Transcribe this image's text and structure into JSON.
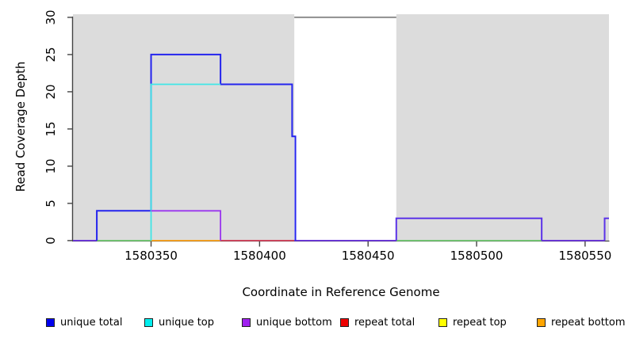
{
  "figure": {
    "x_title": "Coordinate in Reference Genome",
    "y_title": "Read Coverage Depth"
  },
  "chart_data": {
    "type": "line",
    "subtype": "step-coverage",
    "title": "",
    "xlabel": "Coordinate in Reference Genome",
    "ylabel": "Read Coverage Depth",
    "xlim": [
      1580314,
      1580561
    ],
    "ylim": [
      0,
      30
    ],
    "xticks": [
      1580350,
      1580400,
      1580450,
      1580500,
      1580550
    ],
    "yticks": [
      0,
      5,
      10,
      15,
      20,
      25,
      30
    ],
    "grid": false,
    "legend_position": "bottom",
    "shading_color": "#dcdcdc",
    "shaded_regions": [
      [
        1580314,
        1580416
      ],
      [
        1580463,
        1580561
      ]
    ],
    "unshaded_gap": [
      1580416,
      1580463
    ],
    "clipped_line": {
      "x1": 1580416,
      "x2": 1580463,
      "y": 30,
      "color": "#8e8e8e",
      "w": 2
    },
    "series": [
      {
        "name": "unique total",
        "color": "#2424ee",
        "w": 2,
        "steps": [
          [
            1580314,
            0
          ],
          [
            1580325,
            4
          ],
          [
            1580350,
            25
          ],
          [
            1580382,
            21
          ],
          [
            1580415,
            14
          ],
          [
            1580416,
            0
          ],
          [
            1580463,
            3
          ],
          [
            1580530,
            0
          ],
          [
            1580559,
            3
          ],
          [
            1580561,
            3
          ]
        ]
      },
      {
        "name": "unique top",
        "color": "#40e6e6",
        "w": 1.8,
        "steps": [
          [
            1580314,
            0
          ],
          [
            1580350,
            21
          ],
          [
            1580382,
            0
          ]
        ]
      },
      {
        "name": "unique bottom",
        "color": "#9a35ee",
        "w": 1.8,
        "steps": [
          [
            1580314,
            0
          ],
          [
            1580350,
            4
          ],
          [
            1580382,
            0
          ],
          [
            1580463,
            3
          ],
          [
            1580530,
            0
          ],
          [
            1580559,
            3
          ],
          [
            1580561,
            3
          ]
        ]
      },
      {
        "name": "repeat total",
        "color": "#d6455e",
        "w": 1.8,
        "steps": [
          [
            1580382,
            0
          ],
          [
            1580416,
            0
          ]
        ]
      },
      {
        "name": "repeat top",
        "color": "#ffff00",
        "w": 1.8,
        "steps": []
      },
      {
        "name": "repeat bottom",
        "color": "#ffa51e",
        "w": 1.8,
        "steps": [
          [
            1580350,
            0
          ],
          [
            1580382,
            0
          ]
        ]
      }
    ],
    "visible_polylines": [
      {
        "series": "zero-line",
        "color": "#6b35e0",
        "w": 1.8,
        "points": [
          [
            1580314,
            0
          ],
          [
            1580325,
            0
          ]
        ]
      },
      {
        "series": "zero-line",
        "color": "#74cb74",
        "w": 1.8,
        "points": [
          [
            1580325,
            0
          ],
          [
            1580350,
            0
          ]
        ]
      },
      {
        "series": "repeat bottom",
        "color": "#ffa51e",
        "w": 1.8,
        "points": [
          [
            1580350,
            0
          ],
          [
            1580382,
            0
          ]
        ]
      },
      {
        "series": "repeat total",
        "color": "#d6455e",
        "w": 1.8,
        "points": [
          [
            1580382,
            0
          ],
          [
            1580416,
            0
          ]
        ]
      },
      {
        "series": "zero-line",
        "color": "#6b35e0",
        "w": 1.8,
        "points": [
          [
            1580416,
            0
          ],
          [
            1580463,
            0
          ]
        ]
      },
      {
        "series": "zero-line",
        "color": "#74cb74",
        "w": 1.8,
        "points": [
          [
            1580463,
            0
          ],
          [
            1580530,
            0
          ]
        ]
      },
      {
        "series": "zero-line",
        "color": "#6b35e0",
        "w": 1.8,
        "points": [
          [
            1580530,
            0
          ],
          [
            1580559,
            0
          ]
        ]
      },
      {
        "series": "unique total",
        "color": "#2424ee",
        "w": 2,
        "points": [
          [
            1580325,
            0
          ],
          [
            1580325,
            4
          ],
          [
            1580350,
            4
          ],
          [
            1580350,
            25
          ],
          [
            1580382,
            25
          ],
          [
            1580382,
            21
          ],
          [
            1580415,
            21
          ],
          [
            1580415,
            14
          ],
          [
            1580416.5,
            14
          ],
          [
            1580416.5,
            0
          ]
        ]
      },
      {
        "series": "unique top",
        "color": "#40e6e6",
        "w": 1.8,
        "points": [
          [
            1580350,
            0
          ],
          [
            1580350,
            21
          ],
          [
            1580382,
            21
          ]
        ]
      },
      {
        "series": "unique bottom",
        "color": "#9a35ee",
        "w": 1.8,
        "points": [
          [
            1580350,
            4
          ],
          [
            1580382,
            4
          ],
          [
            1580382,
            0
          ]
        ]
      },
      {
        "series": "unique total + unique bottom",
        "color": "#5b33e8",
        "w": 2,
        "points": [
          [
            1580463,
            0
          ],
          [
            1580463,
            3
          ],
          [
            1580530,
            3
          ],
          [
            1580530,
            0
          ]
        ]
      },
      {
        "series": "unique total + unique bottom",
        "color": "#5b33e8",
        "w": 2,
        "points": [
          [
            1580559,
            0
          ],
          [
            1580559,
            3
          ],
          [
            1580561,
            3
          ]
        ]
      }
    ]
  },
  "legend": {
    "items": [
      {
        "label": "unique total",
        "color": "#0000ee"
      },
      {
        "label": "unique top",
        "color": "#00eeee"
      },
      {
        "label": "unique bottom",
        "color": "#a020f0"
      },
      {
        "label": "repeat total",
        "color": "#ee0000"
      },
      {
        "label": "repeat top",
        "color": "#ffff00"
      },
      {
        "label": "repeat bottom",
        "color": "#ffa500"
      }
    ]
  },
  "layout_hints": {
    "axis_color": "#444444"
  }
}
